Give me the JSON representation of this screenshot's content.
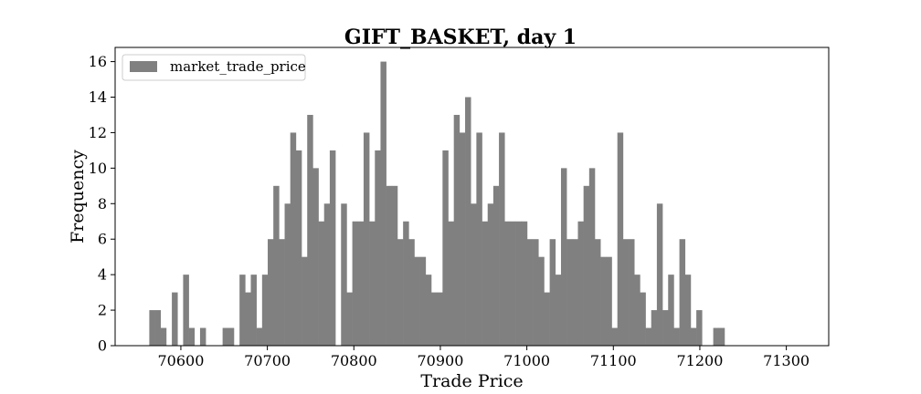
{
  "chart_data": {
    "type": "bar",
    "title": "GIFT_BASKET, day 1",
    "xlabel": "Trade Price",
    "ylabel": "Frequency",
    "xlim": [
      70524,
      71349
    ],
    "ylim": [
      0,
      16.8
    ],
    "xticks": [
      70600,
      70700,
      70800,
      70900,
      71000,
      71100,
      71200,
      71300
    ],
    "yticks": [
      0,
      2,
      4,
      6,
      8,
      10,
      12,
      14,
      16
    ],
    "grid": false,
    "legend": {
      "position": "top-left",
      "entries": [
        "market_trade_price"
      ]
    },
    "bin_start": 70563.5,
    "bin_width": 6.52,
    "series": [
      {
        "name": "market_trade_price",
        "color": "#808080",
        "values": [
          2,
          2,
          1,
          0,
          3,
          0,
          4,
          1,
          0,
          1,
          0,
          0,
          0,
          1,
          1,
          0,
          4,
          3,
          4,
          1,
          4,
          6,
          9,
          6,
          8,
          12,
          11,
          5,
          13,
          10,
          7,
          8,
          11,
          0,
          8,
          3,
          7,
          7,
          12,
          7,
          11,
          16,
          9,
          9,
          6,
          7,
          6,
          5,
          5,
          4,
          3,
          3,
          11,
          7,
          13,
          12,
          14,
          8,
          12,
          7,
          8,
          9,
          12,
          7,
          7,
          7,
          7,
          6,
          6,
          5,
          3,
          6,
          4,
          10,
          6,
          6,
          7,
          9,
          10,
          6,
          5,
          5,
          1,
          12,
          6,
          6,
          4,
          3,
          1,
          2,
          8,
          2,
          4,
          1,
          6,
          4,
          1,
          2,
          0,
          0,
          1,
          1
        ]
      }
    ]
  }
}
